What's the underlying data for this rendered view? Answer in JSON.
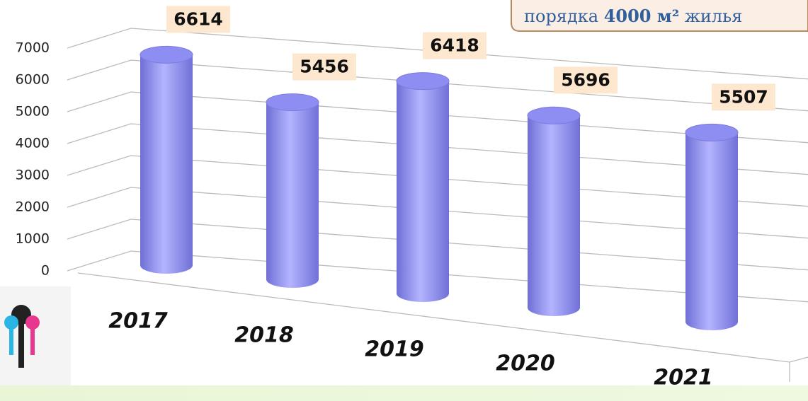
{
  "chart_data": {
    "type": "bar",
    "categories": [
      "2017",
      "2018",
      "2019",
      "2020",
      "2021"
    ],
    "values": [
      6614,
      5456,
      6418,
      5696,
      5507
    ],
    "color": "#8e8ef2",
    "ylim": [
      0,
      7000
    ],
    "yticks": [
      0,
      1000,
      2000,
      3000,
      4000,
      5000,
      6000,
      7000
    ],
    "grid": true
  },
  "callout": {
    "text": [
      "порядка",
      "4000 м²",
      "жилья"
    ]
  }
}
